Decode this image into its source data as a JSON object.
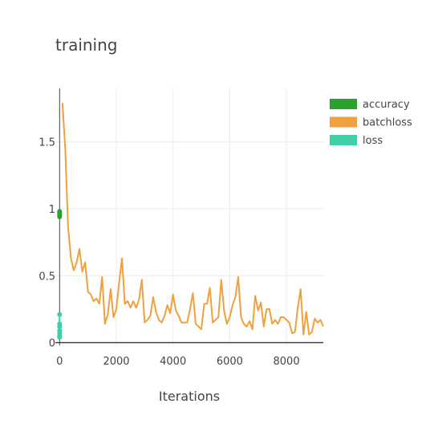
{
  "chart_data": {
    "type": "line",
    "title": "training",
    "xlabel": "Iterations",
    "ylabel": "",
    "xlim": [
      -150,
      9300
    ],
    "ylim": [
      -0.02,
      1.9
    ],
    "x_ticks": [
      0,
      2000,
      4000,
      6000,
      8000
    ],
    "x_tick_labels": [
      "0",
      "2000",
      "4000",
      "6000",
      "8000"
    ],
    "y_ticks": [
      0,
      0.5,
      1,
      1.5
    ],
    "y_tick_labels": [
      "0",
      "0.5",
      "1",
      "1.5"
    ],
    "grid": true,
    "legend": "top-right",
    "series": [
      {
        "name": "accuracy",
        "color": "#2ca02c",
        "mode": "markers+lines",
        "x": [
          0,
          0,
          0,
          0,
          0
        ],
        "y": [
          0.94,
          0.96,
          0.97,
          0.98,
          0.95
        ]
      },
      {
        "name": "batchloss",
        "color": "#f0a03c",
        "mode": "lines",
        "x": [
          100,
          200,
          300,
          400,
          500,
          600,
          700,
          800,
          900,
          1000,
          1100,
          1200,
          1300,
          1400,
          1500,
          1600,
          1700,
          1800,
          1900,
          2000,
          2100,
          2200,
          2300,
          2400,
          2500,
          2600,
          2700,
          2800,
          2900,
          3000,
          3100,
          3200,
          3300,
          3400,
          3500,
          3600,
          3700,
          3800,
          3900,
          4000,
          4100,
          4200,
          4300,
          4400,
          4500,
          4600,
          4700,
          4800,
          4900,
          5000,
          5100,
          5200,
          5300,
          5400,
          5500,
          5600,
          5700,
          5800,
          5900,
          6000,
          6100,
          6200,
          6300,
          6400,
          6500,
          6600,
          6700,
          6800,
          6900,
          7000,
          7100,
          7200,
          7300,
          7400,
          7500,
          7600,
          7700,
          7800,
          7900,
          8000,
          8100,
          8200,
          8300,
          8400,
          8500,
          8600,
          8700,
          8800,
          8900,
          9000,
          9100,
          9200,
          9300
        ],
        "y": [
          1.79,
          1.45,
          0.86,
          0.63,
          0.54,
          0.6,
          0.7,
          0.53,
          0.6,
          0.38,
          0.36,
          0.31,
          0.33,
          0.29,
          0.49,
          0.14,
          0.21,
          0.4,
          0.19,
          0.25,
          0.45,
          0.63,
          0.29,
          0.31,
          0.26,
          0.31,
          0.26,
          0.32,
          0.47,
          0.15,
          0.17,
          0.2,
          0.34,
          0.23,
          0.17,
          0.15,
          0.2,
          0.28,
          0.22,
          0.36,
          0.24,
          0.2,
          0.15,
          0.15,
          0.15,
          0.25,
          0.37,
          0.14,
          0.12,
          0.1,
          0.29,
          0.29,
          0.41,
          0.15,
          0.17,
          0.19,
          0.47,
          0.24,
          0.14,
          0.19,
          0.28,
          0.34,
          0.49,
          0.19,
          0.14,
          0.12,
          0.16,
          0.1,
          0.35,
          0.24,
          0.3,
          0.12,
          0.25,
          0.25,
          0.14,
          0.17,
          0.14,
          0.19,
          0.19,
          0.17,
          0.15,
          0.07,
          0.08,
          0.26,
          0.4,
          0.06,
          0.23,
          0.06,
          0.08,
          0.18,
          0.15,
          0.17,
          0.12
        ]
      },
      {
        "name": "loss",
        "color": "#3ccfa8",
        "mode": "markers+lines",
        "x": [
          0,
          0,
          0,
          0,
          0,
          0,
          0
        ],
        "y": [
          0.21,
          0.14,
          0.12,
          0.09,
          0.07,
          0.05,
          0.04
        ]
      }
    ]
  }
}
